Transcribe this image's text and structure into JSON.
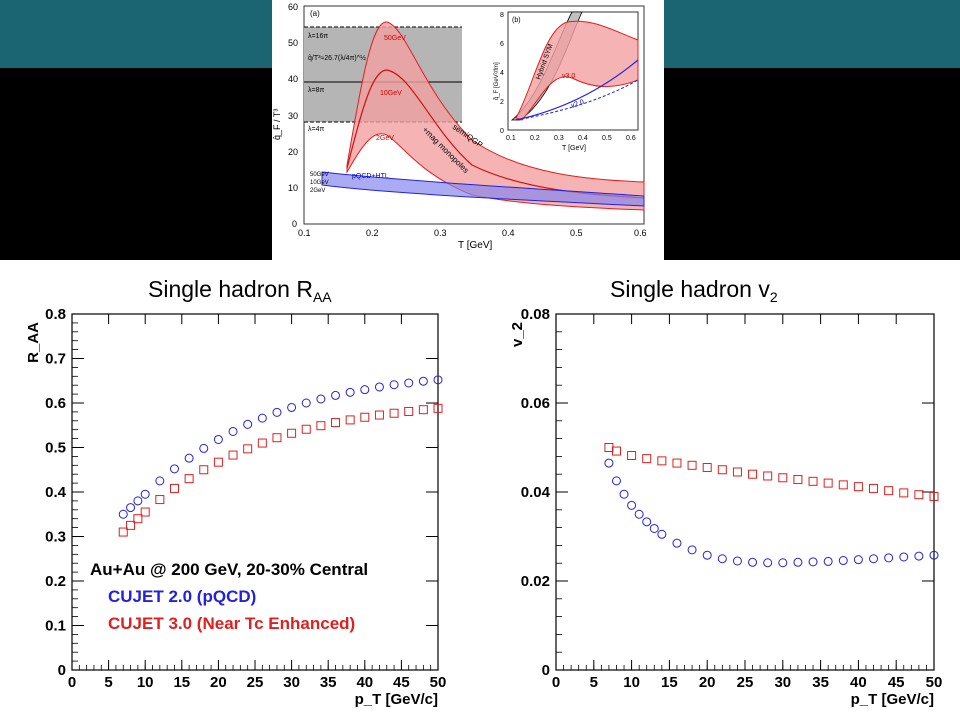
{
  "header": {
    "teal": "#1b6472",
    "dark": "#000000"
  },
  "top_figure": {
    "panel_a": {
      "tag": "(a)",
      "xlabel": "T [GeV]",
      "ylabel": "q̂_F / T³",
      "xticks": [
        "0.1",
        "0.2",
        "0.3",
        "0.4",
        "0.5",
        "0.6"
      ],
      "yticks": [
        "0",
        "10",
        "20",
        "30",
        "40",
        "50",
        "60"
      ],
      "annotations": [
        "λ=16π",
        "λ=8π",
        "λ=4π",
        "q̂/T³≈26.7(λ/4π)^½",
        "50GeV",
        "10GeV",
        "2GeV",
        "semiQGP",
        "+mag monopoles",
        "pQCD+HTL",
        "50GeV",
        "10GeV",
        "2GeV"
      ]
    },
    "panel_b": {
      "tag": "(b)",
      "xlabel": "T [GeV]",
      "ylabel": "q̂_F [GeV²/fm]",
      "xticks": [
        "0.1",
        "0.2",
        "0.3",
        "0.4",
        "0.5",
        "0.6"
      ],
      "yticks": [
        "0",
        "2",
        "4",
        "6",
        "8"
      ],
      "annotations": [
        "Hybrid SYM",
        "v3.0",
        "v2.0"
      ]
    }
  },
  "titles": {
    "raa_main": "Single hadron R",
    "raa_sub": "AA",
    "v2_main": "Single hadron v",
    "v2_sub": "2"
  },
  "chart_data": [
    {
      "type": "scatter",
      "title": "Single hadron R_AA",
      "xlabel": "p_T [GeV/c]",
      "ylabel": "R_AA",
      "xlim": [
        0,
        50
      ],
      "ylim": [
        0,
        0.8
      ],
      "xticks": [
        "0",
        "5",
        "10",
        "15",
        "20",
        "25",
        "30",
        "35",
        "40",
        "45",
        "50"
      ],
      "yticks": [
        "0",
        "0.1",
        "0.2",
        "0.3",
        "0.4",
        "0.5",
        "0.6",
        "0.7",
        "0.8"
      ],
      "legend": {
        "header": "Au+Au @ 200 GeV, 20-30% Central",
        "placement": "bottom-left"
      },
      "series": [
        {
          "name": "CUJET 2.0 (pQCD)",
          "color": "#2222dd",
          "marker": "circle",
          "x": [
            7,
            8,
            9,
            10,
            12,
            14,
            16,
            18,
            20,
            22,
            24,
            26,
            28,
            30,
            32,
            34,
            36,
            38,
            40,
            42,
            44,
            46,
            48,
            50
          ],
          "y": [
            0.35,
            0.365,
            0.38,
            0.395,
            0.425,
            0.452,
            0.476,
            0.498,
            0.518,
            0.536,
            0.552,
            0.566,
            0.579,
            0.59,
            0.6,
            0.609,
            0.617,
            0.624,
            0.63,
            0.636,
            0.641,
            0.645,
            0.649,
            0.652
          ]
        },
        {
          "name": "CUJET 3.0 (Near Tc Enhanced)",
          "color": "#e02020",
          "marker": "square",
          "x": [
            7,
            8,
            9,
            10,
            12,
            14,
            16,
            18,
            20,
            22,
            24,
            26,
            28,
            30,
            32,
            34,
            36,
            38,
            40,
            42,
            44,
            46,
            48,
            50
          ],
          "y": [
            0.31,
            0.325,
            0.34,
            0.355,
            0.383,
            0.408,
            0.43,
            0.45,
            0.467,
            0.483,
            0.497,
            0.51,
            0.522,
            0.532,
            0.541,
            0.549,
            0.556,
            0.562,
            0.568,
            0.573,
            0.577,
            0.581,
            0.585,
            0.588
          ]
        }
      ]
    },
    {
      "type": "scatter",
      "title": "Single hadron v_2",
      "xlabel": "p_T [GeV/c]",
      "ylabel": "v_2",
      "xlim": [
        0,
        50
      ],
      "ylim": [
        0,
        0.08
      ],
      "xticks": [
        "0",
        "5",
        "10",
        "15",
        "20",
        "25",
        "30",
        "35",
        "40",
        "45",
        "50"
      ],
      "yticks": [
        "0",
        "0.02",
        "0.04",
        "0.06",
        "0.08"
      ],
      "series": [
        {
          "name": "CUJET 2.0 (pQCD)",
          "color": "#2222dd",
          "marker": "circle",
          "x": [
            7,
            8,
            9,
            10,
            11,
            12,
            13,
            14,
            16,
            18,
            20,
            22,
            24,
            26,
            28,
            30,
            32,
            34,
            36,
            38,
            40,
            42,
            44,
            46,
            48,
            50
          ],
          "y": [
            0.0465,
            0.0425,
            0.0395,
            0.037,
            0.035,
            0.0333,
            0.0318,
            0.0305,
            0.0285,
            0.027,
            0.0258,
            0.025,
            0.0245,
            0.0242,
            0.0241,
            0.0241,
            0.0242,
            0.0243,
            0.0244,
            0.0246,
            0.0248,
            0.025,
            0.0252,
            0.0254,
            0.0256,
            0.0258
          ]
        },
        {
          "name": "CUJET 3.0 (Near Tc Enhanced)",
          "color": "#e02020",
          "marker": "square",
          "x": [
            7,
            8,
            10,
            12,
            14,
            16,
            18,
            20,
            22,
            24,
            26,
            28,
            30,
            32,
            34,
            36,
            38,
            40,
            42,
            44,
            46,
            48,
            50
          ],
          "y": [
            0.05,
            0.0492,
            0.0482,
            0.0475,
            0.047,
            0.0465,
            0.046,
            0.0455,
            0.045,
            0.0445,
            0.044,
            0.0436,
            0.0432,
            0.0428,
            0.0424,
            0.042,
            0.0416,
            0.0412,
            0.0408,
            0.0403,
            0.0398,
            0.0394,
            0.039
          ]
        }
      ]
    }
  ]
}
